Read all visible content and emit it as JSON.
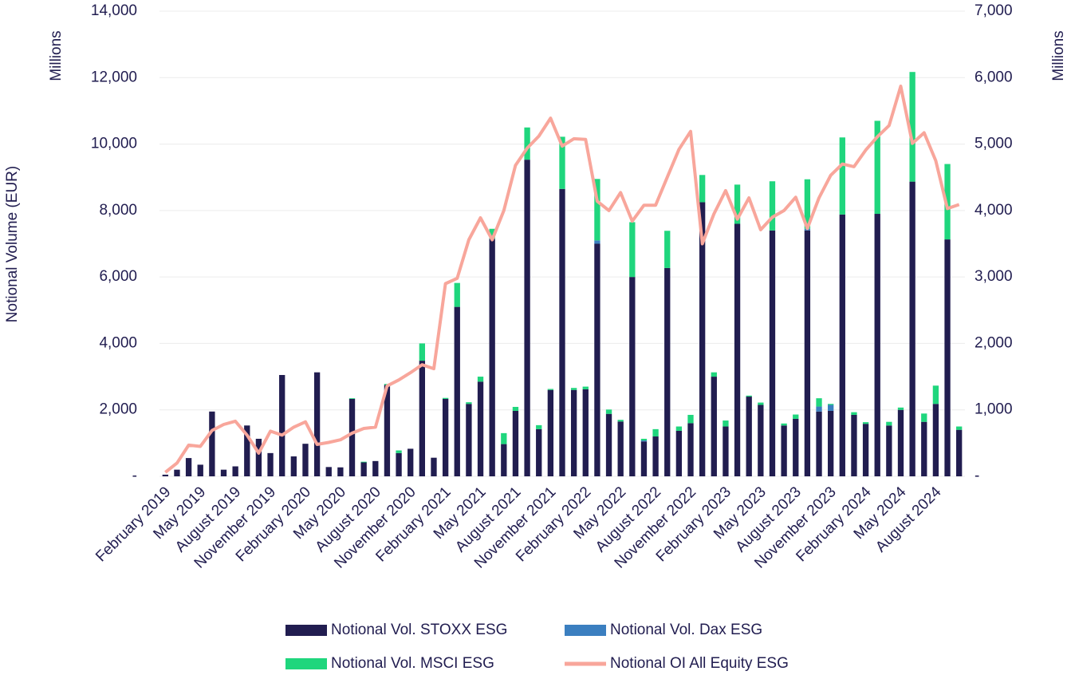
{
  "chart_data": {
    "type": "bar",
    "y_label": "Notional Volume (EUR)",
    "y_unit": "Millions",
    "y2_unit": "Millions",
    "categories": [
      "February 2019",
      null,
      null,
      "May 2019",
      null,
      null,
      "August 2019",
      null,
      null,
      "November 2019",
      null,
      null,
      "February 2020",
      null,
      null,
      "May 2020",
      null,
      null,
      "August 2020",
      null,
      null,
      "November 2020",
      null,
      null,
      "February 2021",
      null,
      null,
      "May 2021",
      null,
      null,
      "August 2021",
      null,
      null,
      "November 2021",
      null,
      null,
      "February 2022",
      null,
      null,
      "May 2022",
      null,
      null,
      "August 2022",
      null,
      null,
      "November 2022",
      null,
      null,
      "February 2023",
      null,
      null,
      "May 2023",
      null,
      null,
      "August 2023",
      null,
      null,
      "November 2023",
      null,
      null,
      "February 2024",
      null,
      null,
      "May 2024",
      null,
      null,
      "August 2024",
      null,
      null
    ],
    "series": [
      {
        "name": "Notional Vol. STOXX ESG",
        "color": "#211d50",
        "values": [
          50,
          200,
          550,
          350,
          1950,
          200,
          300,
          1530,
          1130,
          700,
          3050,
          600,
          980,
          3130,
          280,
          270,
          2330,
          420,
          460,
          2750,
          700,
          830,
          3480,
          560,
          2330,
          5100,
          2180,
          2850,
          7150,
          970,
          1970,
          9530,
          1420,
          2600,
          8650,
          2600,
          2620,
          7000,
          1880,
          1650,
          6000,
          1050,
          1200,
          6270,
          1370,
          1600,
          8250,
          3000,
          1500,
          7600,
          2400,
          2150,
          7400,
          1530,
          1730,
          7400,
          1950,
          1970,
          7880,
          1850,
          1580,
          7900,
          1530,
          2000,
          8870,
          1640,
          2180,
          7130,
          1400
        ]
      },
      {
        "name": "Notional Vol. Dax ESG",
        "color": "#3b7fc0",
        "values": [
          0,
          0,
          0,
          0,
          0,
          0,
          0,
          0,
          0,
          0,
          0,
          0,
          0,
          0,
          0,
          0,
          0,
          0,
          0,
          0,
          0,
          0,
          0,
          0,
          0,
          0,
          0,
          0,
          0,
          0,
          0,
          0,
          0,
          0,
          0,
          0,
          0,
          100,
          0,
          0,
          0,
          30,
          0,
          0,
          0,
          0,
          0,
          0,
          0,
          0,
          0,
          0,
          0,
          0,
          0,
          50,
          150,
          180,
          0,
          0,
          0,
          0,
          0,
          0,
          0,
          0,
          0,
          0,
          0
        ]
      },
      {
        "name": "Notional Vol. MSCI ESG",
        "color": "#1fd67d",
        "values": [
          0,
          0,
          0,
          0,
          0,
          0,
          0,
          0,
          0,
          0,
          0,
          0,
          0,
          0,
          0,
          0,
          20,
          20,
          0,
          30,
          80,
          0,
          520,
          0,
          30,
          720,
          50,
          150,
          300,
          330,
          120,
          970,
          120,
          30,
          1570,
          60,
          80,
          1850,
          130,
          50,
          1650,
          50,
          220,
          1120,
          130,
          250,
          820,
          130,
          180,
          1180,
          30,
          70,
          1480,
          60,
          130,
          1490,
          250,
          30,
          2320,
          80,
          50,
          2800,
          110,
          70,
          3300,
          250,
          550,
          2270,
          100
        ]
      },
      {
        "name": "Notional OI All Equity ESG",
        "color": "#f8a69b",
        "type": "line",
        "axis": "y2",
        "values": [
          60,
          200,
          470,
          450,
          690,
          780,
          830,
          620,
          350,
          680,
          620,
          740,
          820,
          480,
          510,
          550,
          650,
          720,
          740,
          1360,
          1450,
          1560,
          1680,
          1620,
          2900,
          2980,
          3560,
          3890,
          3560,
          4000,
          4680,
          4940,
          5120,
          5390,
          4970,
          5080,
          5070,
          4140,
          4000,
          4270,
          3840,
          4080,
          4080,
          4500,
          4920,
          5190,
          3500,
          3950,
          4300,
          3870,
          4190,
          3710,
          3900,
          4000,
          4200,
          3730,
          4190,
          4530,
          4700,
          4660,
          4910,
          5110,
          5280,
          5870,
          5010,
          5170,
          4750,
          4030,
          4090
        ]
      }
    ],
    "ylim": [
      0,
      14000
    ],
    "yticks": [
      {
        "value": 0,
        "label": "-"
      },
      {
        "value": 2000,
        "label": "2,000"
      },
      {
        "value": 4000,
        "label": "4,000"
      },
      {
        "value": 6000,
        "label": "6,000"
      },
      {
        "value": 8000,
        "label": "8,000"
      },
      {
        "value": 10000,
        "label": "10,000"
      },
      {
        "value": 12000,
        "label": "12,000"
      },
      {
        "value": 14000,
        "label": "14,000"
      }
    ],
    "y2lim": [
      0,
      7000
    ],
    "y2ticks": [
      {
        "value": 0,
        "label": "-"
      },
      {
        "value": 1000,
        "label": "1,000"
      },
      {
        "value": 2000,
        "label": "2,000"
      },
      {
        "value": 3000,
        "label": "3,000"
      },
      {
        "value": 4000,
        "label": "4,000"
      },
      {
        "value": 5000,
        "label": "5,000"
      },
      {
        "value": 6000,
        "label": "6,000"
      },
      {
        "value": 7000,
        "label": "7,000"
      }
    ],
    "grid": true,
    "legend": "bottom"
  }
}
